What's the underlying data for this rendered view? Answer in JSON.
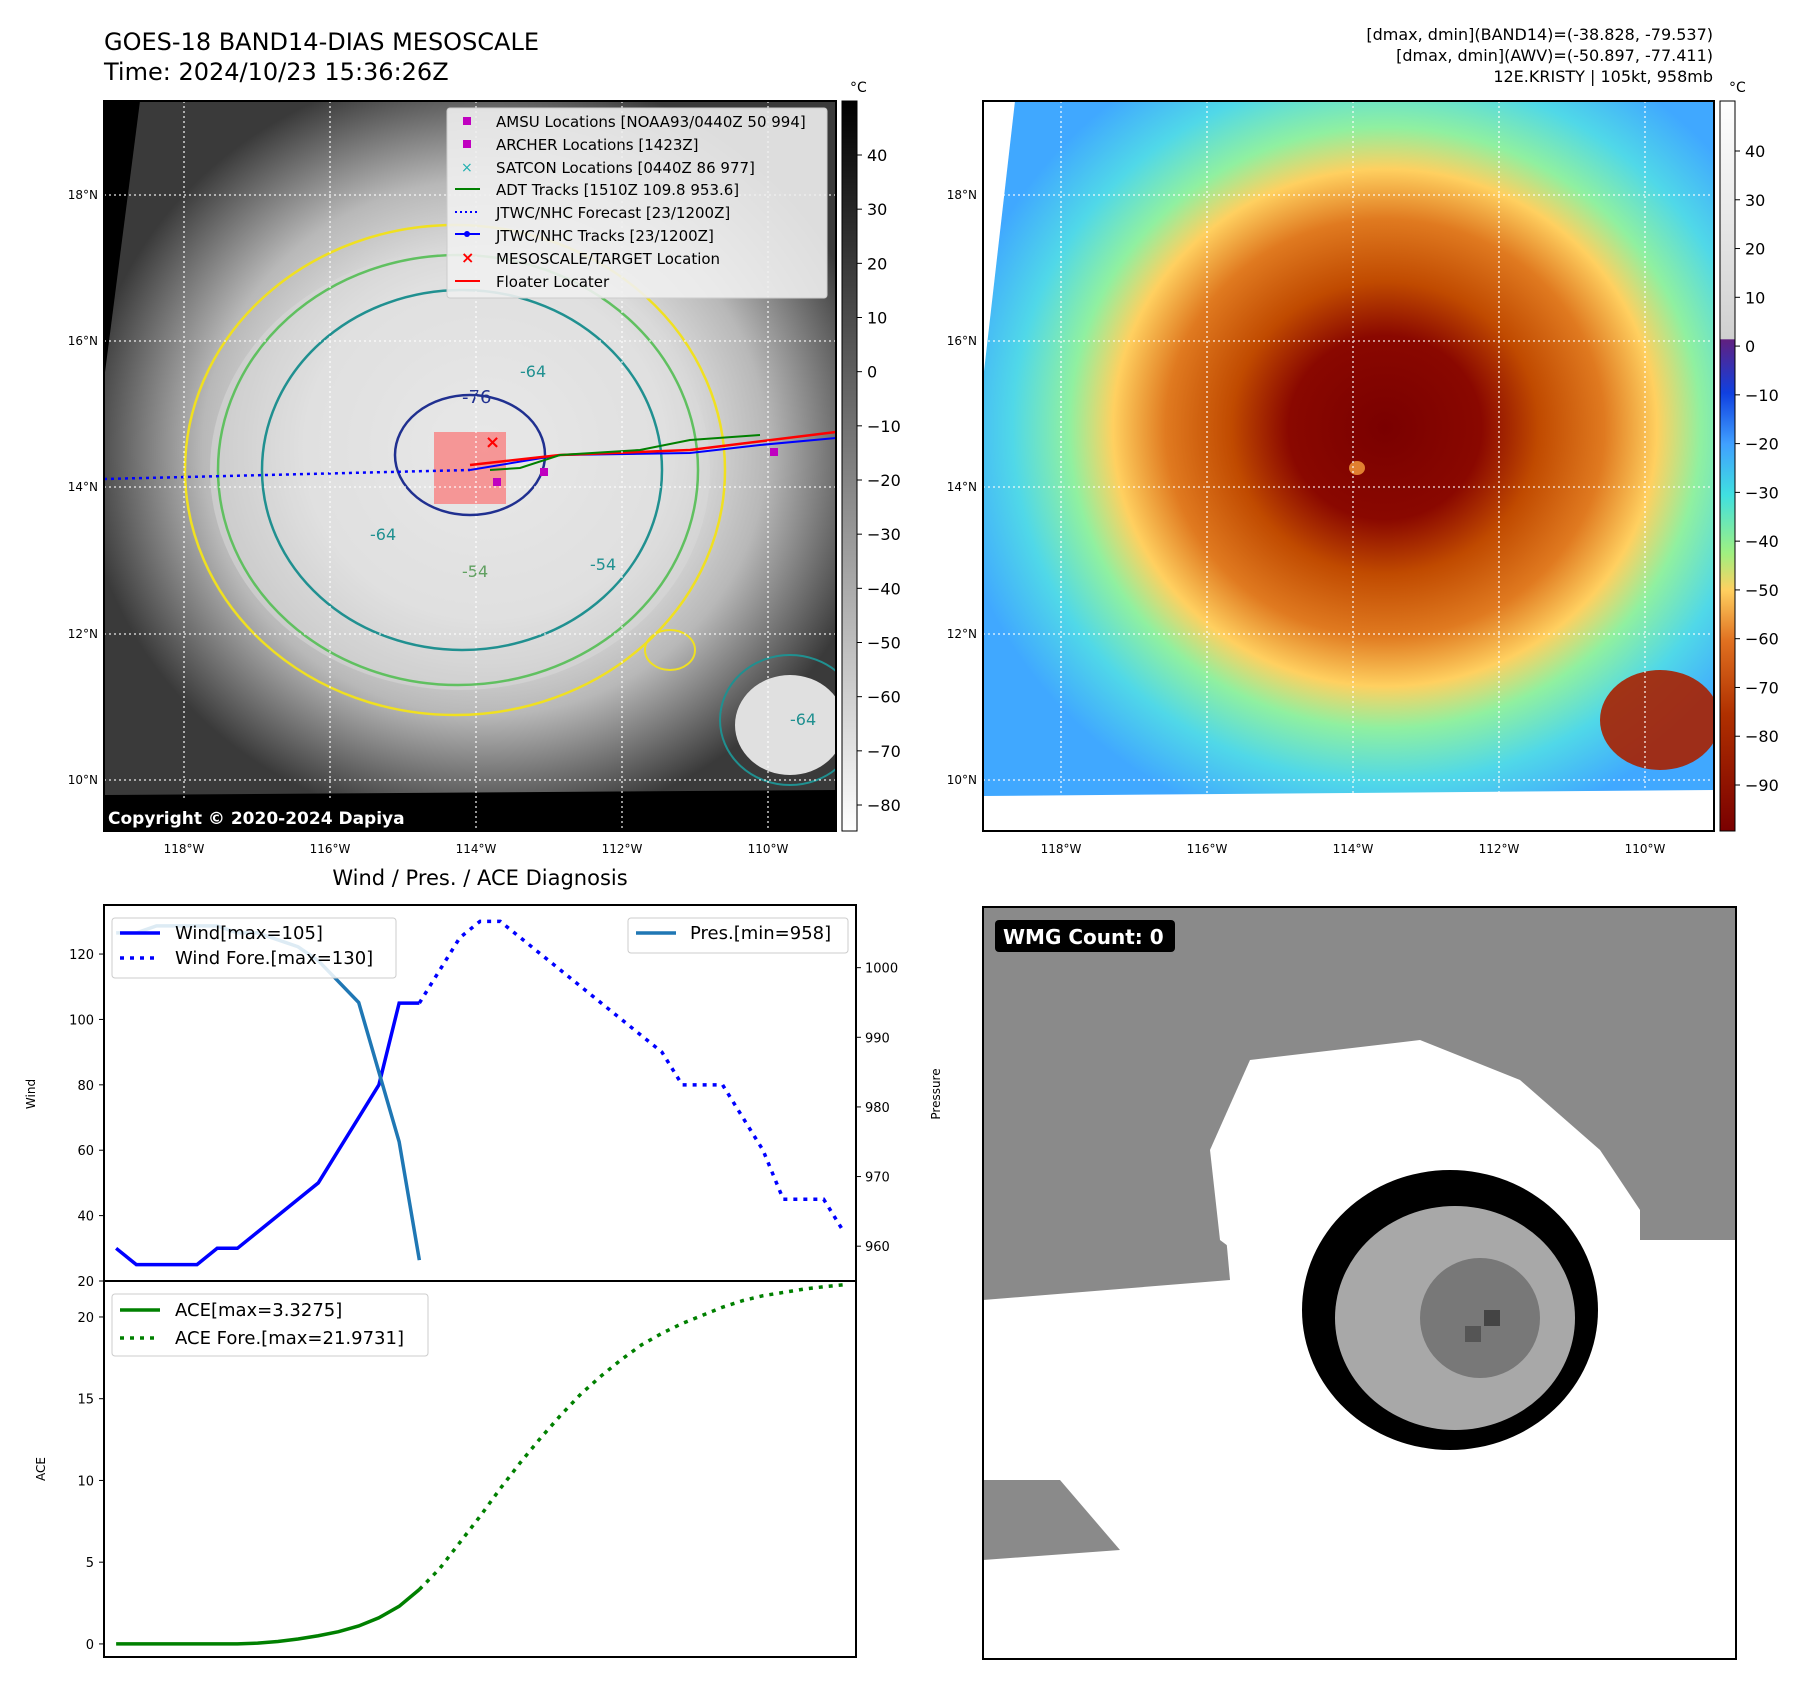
{
  "header": {
    "title_line1": "GOES-18 BAND14-DIAS MESOSCALE",
    "title_line2": "Time: 2024/10/23 15:36:26Z",
    "info_line1": "[dmax, dmin](BAND14)=(-38.828, -79.537)",
    "info_line2": "[dmax, dmin](AWV)=(-50.897, -77.411)",
    "info_line3": "12E.KRISTY | 105kt, 958mb"
  },
  "map": {
    "lat_labels": [
      "18°N",
      "16°N",
      "14°N",
      "12°N",
      "10°N"
    ],
    "lon_labels": [
      "118°W",
      "116°W",
      "114°W",
      "112°W",
      "110°W"
    ],
    "copyright": "Copyright © 2020-2024 Dapiya",
    "contour_labels": [
      "-76",
      "-76",
      "-64",
      "-64",
      "-54",
      "-54",
      "-64"
    ],
    "legend": [
      {
        "label": "AMSU Locations [NOAA93/0440Z 50 994]",
        "symbol": "square",
        "color": "#c000c0"
      },
      {
        "label": "ARCHER Locations [1423Z]",
        "symbol": "square",
        "color": "#c000c0"
      },
      {
        "label": "SATCON Locations [0440Z 86 977]",
        "symbol": "x",
        "color": "#20b0b0"
      },
      {
        "label": "ADT Tracks [1510Z 109.8 953.6]",
        "symbol": "line",
        "color": "#008000"
      },
      {
        "label": "JTWC/NHC Forecast [23/1200Z]",
        "symbol": "dotted",
        "color": "#0000ff"
      },
      {
        "label": "JTWC/NHC Tracks [23/1200Z]",
        "symbol": "dotline",
        "color": "#0000ff"
      },
      {
        "label": "MESOSCALE/TARGET Location",
        "symbol": "x",
        "color": "#ff0000"
      },
      {
        "label": "Floater Locater",
        "symbol": "line",
        "color": "#ff0000"
      }
    ]
  },
  "colorbar_left": {
    "unit": "°C",
    "ticks": [
      "40",
      "30",
      "20",
      "10",
      "0",
      "−10",
      "−20",
      "−30",
      "−40",
      "−50",
      "−60",
      "−70",
      "−80"
    ]
  },
  "colorbar_right": {
    "unit": "°C",
    "ticks": [
      "40",
      "30",
      "20",
      "10",
      "0",
      "−10",
      "−20",
      "−30",
      "−40",
      "−50",
      "−60",
      "−70",
      "−80",
      "−90"
    ],
    "colors": [
      "#7a0000",
      "#b03000",
      "#e07020",
      "#ffd060",
      "#a0f080",
      "#40e0e0",
      "#40a0ff",
      "#1040e0",
      "#602080",
      "#ffffff"
    ]
  },
  "chart_data": [
    {
      "type": "line",
      "title": "Wind / Pres. / ACE Diagnosis",
      "ylabel": "Wind",
      "ylabel_right": "Pressure",
      "ylim": [
        20,
        135
      ],
      "ylim_right": [
        955,
        1009
      ],
      "y_ticks": [
        "20",
        "40",
        "60",
        "80",
        "100",
        "120"
      ],
      "y_ticks_right": [
        "960",
        "970",
        "980",
        "990",
        "1000"
      ],
      "series": [
        {
          "name": "Wind[max=105]",
          "style": "solid",
          "color": "#0000ff",
          "x": [
            0,
            1,
            2,
            3,
            4,
            5,
            6,
            7,
            8,
            9,
            10,
            11,
            12,
            13,
            14,
            15
          ],
          "values": [
            30,
            25,
            25,
            25,
            25,
            30,
            30,
            35,
            40,
            45,
            50,
            60,
            70,
            80,
            105,
            105
          ]
        },
        {
          "name": "Wind Fore.[max=130]",
          "style": "dotted",
          "color": "#0000ff",
          "x": [
            15,
            16,
            17,
            18,
            19,
            20,
            21,
            22,
            23,
            24,
            25,
            26,
            27,
            28,
            29,
            30,
            31,
            32,
            33,
            34,
            35,
            36
          ],
          "values": [
            105,
            115,
            125,
            130,
            130,
            125,
            120,
            115,
            110,
            105,
            100,
            95,
            90,
            80,
            80,
            80,
            70,
            60,
            45,
            45,
            45,
            35
          ]
        },
        {
          "name": "Pres.[min=958]",
          "style": "solid",
          "color": "#1f77b4",
          "axis": "right",
          "x": [
            0,
            1,
            2,
            3,
            4,
            5,
            6,
            7,
            8,
            9,
            10,
            11,
            12,
            13,
            14,
            15
          ],
          "values": [
            1005,
            1005,
            1006,
            1006,
            1006,
            1006,
            1005,
            1005,
            1004,
            1003,
            1001,
            998,
            995,
            985,
            975,
            958
          ]
        }
      ]
    },
    {
      "type": "line",
      "ylabel": "ACE",
      "ylim": [
        -0.8,
        22.2
      ],
      "y_ticks": [
        "0",
        "5",
        "10",
        "15",
        "20"
      ],
      "series": [
        {
          "name": "ACE[max=3.3275]",
          "style": "solid",
          "color": "#008000",
          "x": [
            0,
            2,
            4,
            6,
            7,
            8,
            9,
            10,
            11,
            12,
            13,
            14,
            15
          ],
          "values": [
            0,
            0,
            0,
            0,
            0.05,
            0.15,
            0.3,
            0.5,
            0.75,
            1.1,
            1.6,
            2.3,
            3.3275
          ]
        },
        {
          "name": "ACE Fore.[max=21.9731]",
          "style": "dotted",
          "color": "#008000",
          "x": [
            15,
            16,
            17,
            18,
            19,
            20,
            21,
            22,
            23,
            24,
            25,
            26,
            27,
            28,
            29,
            30,
            31,
            32,
            33,
            34,
            35,
            36
          ],
          "values": [
            3.3275,
            4.6,
            6.2,
            7.8,
            9.5,
            11.1,
            12.6,
            14.0,
            15.3,
            16.4,
            17.4,
            18.3,
            19.0,
            19.6,
            20.1,
            20.6,
            21.0,
            21.3,
            21.5,
            21.7,
            21.85,
            21.9731
          ]
        }
      ]
    }
  ],
  "wmg": {
    "label": "WMG Count: 0"
  }
}
